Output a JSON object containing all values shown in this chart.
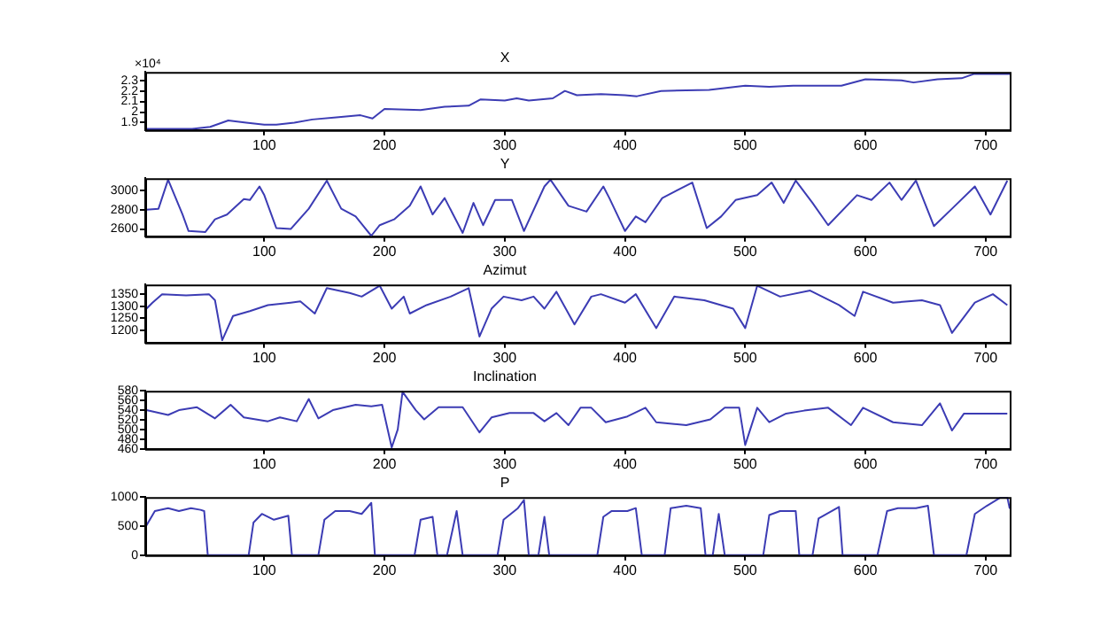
{
  "chart_data": [
    {
      "type": "line",
      "title": "X",
      "annotations": [
        "×10⁴"
      ],
      "color": "#3c3cb4",
      "xlim": [
        1,
        720
      ],
      "xticks": [
        100,
        200,
        300,
        400,
        500,
        600,
        700
      ],
      "ylim": [
        1.83,
        2.38
      ],
      "yticks": [
        1.9,
        2,
        2.1,
        2.2,
        2.3
      ],
      "x": [
        1,
        40,
        55,
        70,
        85,
        100,
        110,
        125,
        140,
        160,
        180,
        190,
        200,
        230,
        250,
        270,
        280,
        300,
        310,
        320,
        340,
        350,
        360,
        380,
        400,
        410,
        430,
        470,
        500,
        520,
        540,
        580,
        600,
        630,
        640,
        660,
        680,
        690,
        720
      ],
      "values": [
        1.84,
        1.84,
        1.86,
        1.92,
        1.9,
        1.88,
        1.88,
        1.9,
        1.93,
        1.95,
        1.97,
        1.94,
        2.03,
        2.02,
        2.05,
        2.06,
        2.12,
        2.11,
        2.13,
        2.11,
        2.13,
        2.2,
        2.16,
        2.17,
        2.16,
        2.15,
        2.2,
        2.21,
        2.25,
        2.24,
        2.25,
        2.25,
        2.31,
        2.3,
        2.28,
        2.31,
        2.32,
        2.36,
        2.36
      ]
    },
    {
      "type": "line",
      "title": "Y",
      "color": "#3c3cb4",
      "xlim": [
        1,
        720
      ],
      "xticks": [
        100,
        200,
        300,
        400,
        500,
        600,
        700
      ],
      "ylim": [
        2525,
        3125
      ],
      "yticks": [
        2600,
        2800,
        3000
      ],
      "x": [
        2,
        12,
        20,
        32,
        37,
        51,
        59,
        69,
        83,
        88,
        96,
        100,
        110,
        122,
        137,
        152,
        164,
        176,
        189,
        196,
        208,
        221,
        230,
        240,
        250,
        265,
        274,
        282,
        292,
        306,
        316,
        333,
        338,
        353,
        368,
        382,
        387,
        400,
        409,
        417,
        431,
        456,
        468,
        480,
        492,
        510,
        522,
        532,
        542,
        556,
        569,
        593,
        605,
        620,
        630,
        642,
        657,
        672,
        691,
        704,
        718
      ],
      "values": [
        2800,
        2810,
        3110,
        2750,
        2580,
        2570,
        2700,
        2750,
        2910,
        2900,
        3040,
        2950,
        2610,
        2600,
        2810,
        3100,
        2810,
        2730,
        2530,
        2640,
        2700,
        2840,
        3040,
        2750,
        2920,
        2560,
        2870,
        2640,
        2900,
        2900,
        2580,
        3040,
        3110,
        2840,
        2780,
        3040,
        2920,
        2580,
        2730,
        2670,
        2920,
        3080,
        2610,
        2730,
        2900,
        2950,
        3080,
        2870,
        3100,
        2870,
        2640,
        2950,
        2900,
        3080,
        2900,
        3100,
        2630,
        2810,
        3040,
        2750,
        3100
      ]
    },
    {
      "type": "line",
      "title": "Azimut",
      "color": "#3c3cb4",
      "xlim": [
        1,
        720
      ],
      "xticks": [
        100,
        200,
        300,
        400,
        500,
        600,
        700
      ],
      "ylim": [
        1150,
        1390
      ],
      "yticks": [
        1200,
        1250,
        1300,
        1350
      ],
      "x": [
        2,
        7,
        15,
        35,
        54,
        59,
        65,
        74,
        88,
        103,
        122,
        130,
        142,
        152,
        171,
        181,
        196,
        206,
        216,
        221,
        235,
        255,
        270,
        279,
        289,
        299,
        314,
        324,
        333,
        343,
        358,
        372,
        380,
        400,
        409,
        426,
        441,
        466,
        490,
        500,
        510,
        529,
        554,
        578,
        591,
        598,
        623,
        647,
        662,
        672,
        691,
        706,
        718
      ],
      "values": [
        1290,
        1315,
        1350,
        1345,
        1350,
        1325,
        1160,
        1260,
        1280,
        1305,
        1315,
        1320,
        1270,
        1375,
        1355,
        1340,
        1385,
        1290,
        1340,
        1270,
        1305,
        1340,
        1375,
        1175,
        1290,
        1340,
        1325,
        1340,
        1290,
        1360,
        1225,
        1340,
        1350,
        1315,
        1350,
        1210,
        1340,
        1325,
        1290,
        1210,
        1385,
        1340,
        1365,
        1305,
        1260,
        1360,
        1315,
        1325,
        1305,
        1190,
        1315,
        1350,
        1305
      ]
    },
    {
      "type": "line",
      "title": "Inclination",
      "color": "#3c3cb4",
      "xlim": [
        1,
        720
      ],
      "xticks": [
        100,
        200,
        300,
        400,
        500,
        600,
        700
      ],
      "ylim": [
        460,
        580
      ],
      "yticks": [
        460,
        480,
        500,
        520,
        540,
        560,
        580
      ],
      "x": [
        2,
        20,
        29,
        44,
        59,
        72,
        83,
        103,
        113,
        127,
        137,
        145,
        157,
        176,
        189,
        198,
        206,
        211,
        215,
        226,
        233,
        245,
        265,
        279,
        289,
        304,
        324,
        333,
        343,
        353,
        363,
        372,
        384,
        402,
        417,
        426,
        451,
        471,
        483,
        495,
        500,
        510,
        520,
        534,
        549,
        569,
        588,
        598,
        623,
        647,
        662,
        672,
        682,
        696,
        718
      ],
      "values": [
        540,
        530,
        540,
        546,
        523,
        551,
        525,
        517,
        525,
        517,
        563,
        523,
        540,
        551,
        548,
        551,
        463,
        500,
        578,
        540,
        521,
        546,
        546,
        494,
        525,
        534,
        534,
        517,
        534,
        509,
        545,
        545,
        515,
        527,
        545,
        515,
        509,
        521,
        545,
        545,
        468,
        545,
        515,
        533,
        539,
        545,
        509,
        545,
        515,
        509,
        554,
        498,
        533,
        533,
        533
      ]
    },
    {
      "type": "line",
      "title": "P",
      "color": "#3c3cb4",
      "xlim": [
        1,
        720
      ],
      "xticks": [
        100,
        200,
        300,
        400,
        500,
        600,
        700
      ],
      "ylim": [
        0,
        1000
      ],
      "yticks": [
        0,
        500,
        1000
      ],
      "x": [
        2,
        9,
        20,
        29,
        39,
        47,
        50,
        53,
        87,
        91,
        98,
        108,
        120,
        123,
        145,
        150,
        159,
        171,
        181,
        189,
        192,
        225,
        230,
        240,
        244,
        252,
        260,
        265,
        294,
        299,
        311,
        316,
        320,
        328,
        333,
        337,
        377,
        382,
        389,
        402,
        409,
        414,
        433,
        438,
        451,
        463,
        467,
        473,
        478,
        483,
        515,
        520,
        529,
        542,
        545,
        556,
        561,
        578,
        581,
        610,
        618,
        627,
        642,
        652,
        657,
        684,
        691,
        701,
        713,
        718,
        720
      ],
      "values": [
        510,
        760,
        810,
        760,
        810,
        780,
        760,
        0,
        0,
        560,
        710,
        610,
        680,
        0,
        0,
        610,
        760,
        760,
        710,
        900,
        0,
        0,
        610,
        660,
        0,
        0,
        760,
        0,
        0,
        610,
        810,
        950,
        0,
        0,
        660,
        0,
        0,
        660,
        760,
        760,
        810,
        0,
        0,
        810,
        850,
        810,
        0,
        0,
        710,
        0,
        0,
        690,
        760,
        760,
        0,
        0,
        630,
        830,
        0,
        0,
        760,
        810,
        810,
        850,
        0,
        0,
        710,
        850,
        1000,
        1000,
        800
      ]
    }
  ]
}
